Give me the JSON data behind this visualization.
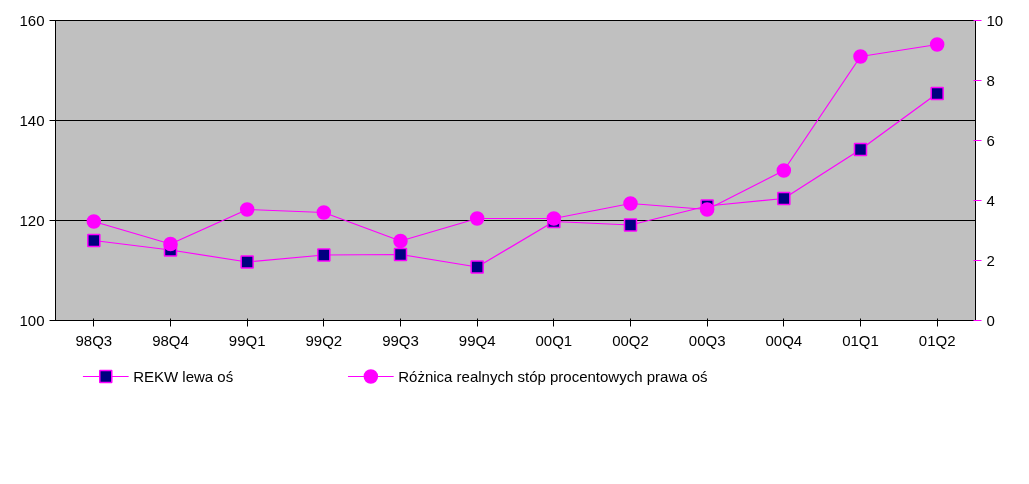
{
  "chart_data": {
    "type": "line",
    "categories": [
      "98Q3",
      "98Q4",
      "99Q1",
      "99Q2",
      "99Q3",
      "99Q4",
      "00Q1",
      "00Q2",
      "00Q3",
      "00Q4",
      "01Q1",
      "01Q2"
    ],
    "ylim": [
      100,
      160
    ],
    "yticks": [
      100,
      120,
      140,
      160
    ],
    "y2lim": [
      0,
      10
    ],
    "y2ticks": [
      0,
      2,
      4,
      6,
      8,
      10
    ],
    "grid": "y",
    "legend": "bottom",
    "series": [
      {
        "name": "REKW lewa oś",
        "color": "#ff00ff",
        "marker": "square",
        "values": [
          116.0,
          114.1,
          111.7,
          113.1,
          113.2,
          110.7,
          119.8,
          119.1,
          122.9,
          124.4,
          134.2,
          145.4
        ]
      },
      {
        "name": "Różnica realnych stóp procentowych prawa oś",
        "color": "#ff00ff",
        "marker": "circle",
        "axis": "y2",
        "values": [
          3.3,
          2.55,
          3.7,
          3.6,
          2.65,
          3.4,
          3.4,
          3.9,
          3.7,
          5.0,
          8.8,
          9.2
        ]
      }
    ]
  }
}
